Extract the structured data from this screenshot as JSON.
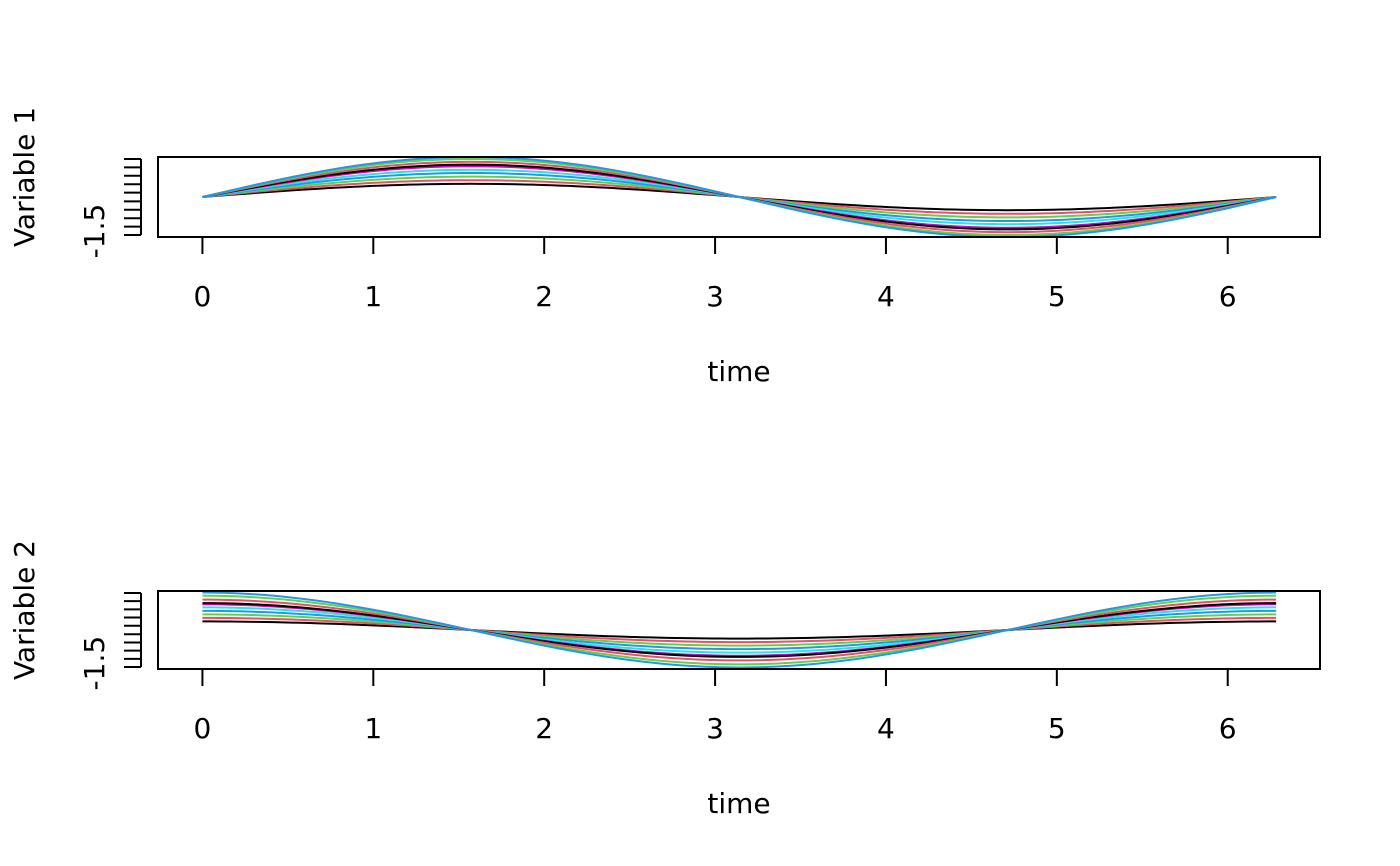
{
  "chart_data": [
    {
      "type": "line",
      "xlabel": "time",
      "ylabel": "Variable  1",
      "xlim": [
        -0.26,
        6.54
      ],
      "ylim": [
        -1.0,
        1.0
      ],
      "x_ticks": [
        0,
        1,
        2,
        3,
        4,
        5,
        6
      ],
      "y_tick_values": [
        -0.95,
        -0.74,
        -0.53,
        -0.32,
        -0.11,
        0.11,
        0.32,
        0.53,
        0.74,
        0.95
      ],
      "y_tick_labels_shown": [
        {
          "value": -0.85,
          "label": "-1.5"
        }
      ],
      "curve": "amplitude * sin(time)",
      "x": [
        0,
        0.3307,
        0.6614,
        0.9921,
        1.3228,
        1.6535,
        1.9842,
        2.3149,
        2.6456,
        2.9763,
        3.3069,
        3.6376,
        3.9683,
        4.299,
        4.6297,
        4.9604,
        5.2911,
        5.6218,
        5.9525,
        6.2832
      ],
      "series": [
        {
          "color": "#000000",
          "amplitude": 0.33
        },
        {
          "color": "#df536b",
          "amplitude": 0.42
        },
        {
          "color": "#61d04f",
          "amplitude": 0.51
        },
        {
          "color": "#2297e6",
          "amplitude": 0.6
        },
        {
          "color": "#28e2e5",
          "amplitude": 0.68
        },
        {
          "color": "#cd0bbc",
          "amplitude": 0.77
        },
        {
          "color": "#000000",
          "amplitude": 0.81
        },
        {
          "color": "#df536b",
          "amplitude": 0.88
        },
        {
          "color": "#61d04f",
          "amplitude": 0.95
        },
        {
          "color": "#2297e6",
          "amplitude": 1.0
        }
      ]
    },
    {
      "type": "line",
      "xlabel": "time",
      "ylabel": "Variable  2",
      "xlim": [
        -0.26,
        6.54
      ],
      "ylim": [
        -1.0,
        1.0
      ],
      "x_ticks": [
        0,
        1,
        2,
        3,
        4,
        5,
        6
      ],
      "y_tick_values": [
        -0.95,
        -0.74,
        -0.53,
        -0.32,
        -0.11,
        0.11,
        0.32,
        0.53,
        0.74,
        0.95
      ],
      "y_tick_labels_shown": [
        {
          "value": -0.85,
          "label": "-1.5"
        }
      ],
      "curve": "amplitude * cos(time)",
      "x": [
        0,
        0.3307,
        0.6614,
        0.9921,
        1.3228,
        1.6535,
        1.9842,
        2.3149,
        2.6456,
        2.9763,
        3.3069,
        3.6376,
        3.9683,
        4.299,
        4.6297,
        4.9604,
        5.2911,
        5.6218,
        5.9525,
        6.2832
      ],
      "series": [
        {
          "color": "#000000",
          "amplitude": 0.22
        },
        {
          "color": "#df536b",
          "amplitude": 0.31
        },
        {
          "color": "#61d04f",
          "amplitude": 0.4
        },
        {
          "color": "#2297e6",
          "amplitude": 0.49
        },
        {
          "color": "#28e2e5",
          "amplitude": 0.58
        },
        {
          "color": "#cd0bbc",
          "amplitude": 0.66
        },
        {
          "color": "#000000",
          "amplitude": 0.69
        },
        {
          "color": "#df536b",
          "amplitude": 0.78
        },
        {
          "color": "#61d04f",
          "amplitude": 0.88
        },
        {
          "color": "#2297e6",
          "amplitude": 0.96
        }
      ]
    }
  ]
}
